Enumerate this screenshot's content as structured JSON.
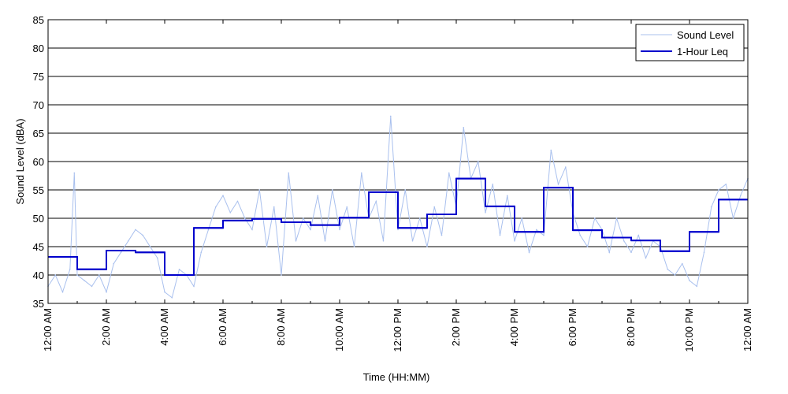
{
  "chart_data": {
    "type": "line",
    "title": "",
    "xlabel": "Time (HH:MM)",
    "ylabel": "Sound Level (dBA)",
    "ylim": [
      35,
      85
    ],
    "yticks": [
      35,
      40,
      45,
      50,
      55,
      60,
      65,
      70,
      75,
      80,
      85
    ],
    "xlim_hours": [
      0,
      24
    ],
    "xtick_hours": [
      0,
      2,
      4,
      6,
      8,
      10,
      12,
      14,
      16,
      18,
      20,
      22,
      24
    ],
    "xtick_labels": [
      "12:00 AM",
      "2:00 AM",
      "4:00 AM",
      "6:00 AM",
      "8:00 AM",
      "10:00 AM",
      "12:00 PM",
      "2:00 PM",
      "4:00 PM",
      "6:00 PM",
      "8:00 PM",
      "10:00 PM",
      "12:00 AM"
    ],
    "grid": "horizontal",
    "legend_position": "top-right",
    "series": [
      {
        "name": "Sound Level",
        "color": "#a9c0ee",
        "style": "thin",
        "x_hours": [
          0,
          0.25,
          0.5,
          0.75,
          0.9,
          1.0,
          1.25,
          1.5,
          1.75,
          2.0,
          2.25,
          2.5,
          2.75,
          3.0,
          3.25,
          3.5,
          3.75,
          4.0,
          4.25,
          4.5,
          4.75,
          5.0,
          5.25,
          5.5,
          5.75,
          6.0,
          6.25,
          6.5,
          6.75,
          7.0,
          7.25,
          7.5,
          7.75,
          8.0,
          8.25,
          8.5,
          8.75,
          9.0,
          9.25,
          9.5,
          9.75,
          10.0,
          10.25,
          10.5,
          10.75,
          11.0,
          11.25,
          11.5,
          11.75,
          12.0,
          12.25,
          12.5,
          12.75,
          13.0,
          13.25,
          13.5,
          13.75,
          14.0,
          14.25,
          14.5,
          14.75,
          15.0,
          15.25,
          15.5,
          15.75,
          16.0,
          16.25,
          16.5,
          16.75,
          17.0,
          17.25,
          17.5,
          17.75,
          18.0,
          18.25,
          18.5,
          18.75,
          19.0,
          19.25,
          19.5,
          19.75,
          20.0,
          20.25,
          20.5,
          20.75,
          21.0,
          21.25,
          21.5,
          21.75,
          22.0,
          22.25,
          22.5,
          22.75,
          23.0,
          23.25,
          23.5,
          23.75,
          24.0
        ],
        "values": [
          38,
          40,
          37,
          41,
          58,
          40,
          39,
          38,
          40,
          37,
          42,
          44,
          46,
          48,
          47,
          45,
          43,
          37,
          36,
          41,
          40,
          38,
          44,
          48,
          52,
          54,
          51,
          53,
          50,
          48,
          55,
          45,
          52,
          40,
          58,
          46,
          50,
          48,
          54,
          46,
          55,
          48,
          52,
          45,
          58,
          50,
          53,
          46,
          68,
          48,
          55,
          46,
          50,
          45,
          52,
          47,
          58,
          52,
          66,
          57,
          60,
          51,
          56,
          47,
          54,
          46,
          50,
          44,
          48,
          47,
          62,
          56,
          59,
          51,
          47,
          45,
          50,
          48,
          44,
          50,
          46,
          44,
          47,
          43,
          46,
          45,
          41,
          40,
          42,
          39,
          38,
          44,
          52,
          55,
          56,
          50,
          54,
          57
        ]
      },
      {
        "name": "1-Hour Leq",
        "color": "#0000cc",
        "style": "step",
        "x_hours": [
          0,
          1,
          2,
          3,
          4,
          5,
          6,
          7,
          8,
          9,
          10,
          11,
          12,
          13,
          14,
          15,
          16,
          17,
          18,
          19,
          20,
          21,
          22,
          23
        ],
        "values": [
          43.2,
          41.0,
          44.3,
          44.0,
          40.0,
          48.3,
          49.6,
          49.9,
          49.3,
          48.8,
          50.1,
          54.6,
          48.3,
          50.7,
          57.0,
          52.1,
          47.6,
          55.4,
          47.9,
          46.6,
          46.1,
          44.2,
          47.6,
          53.3
        ]
      }
    ]
  }
}
